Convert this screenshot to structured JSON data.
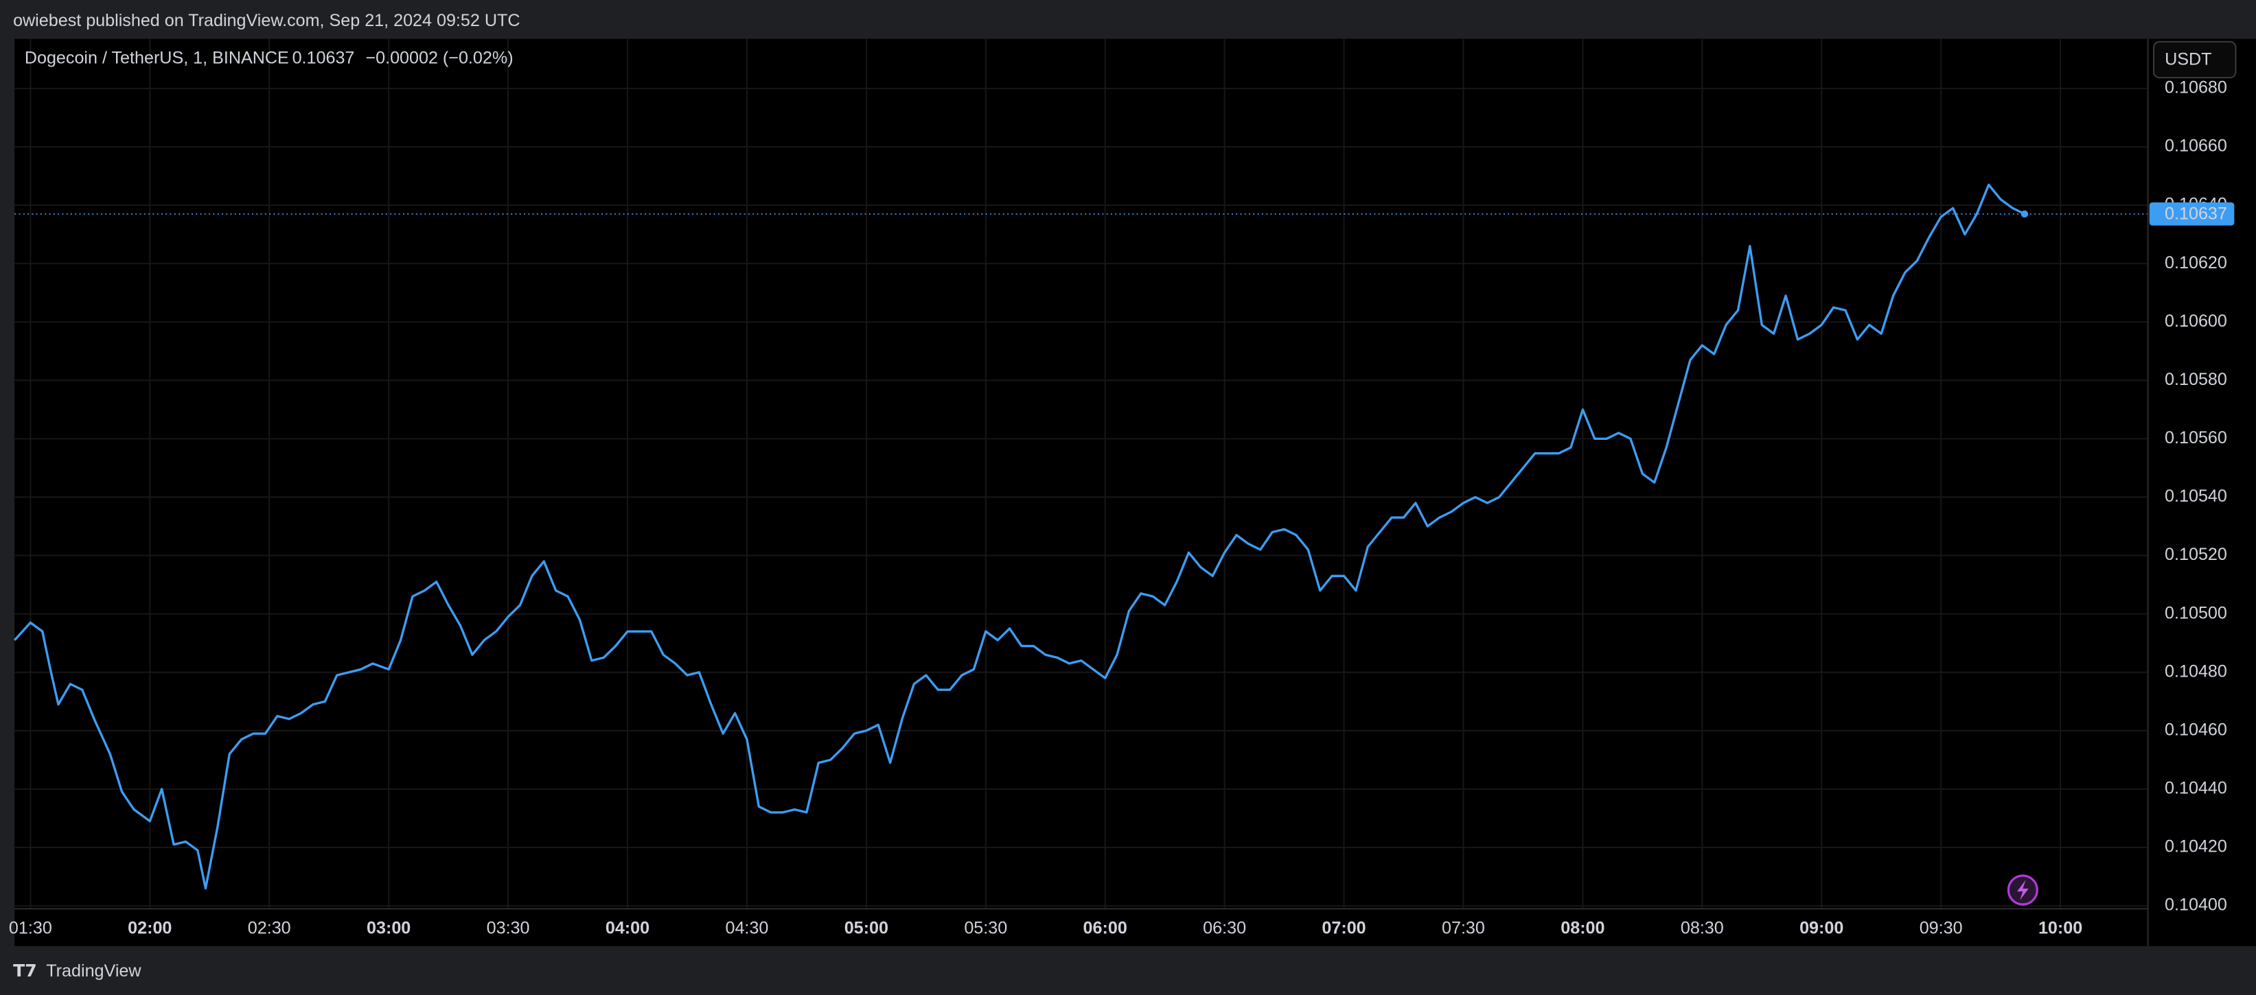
{
  "header": "owiebest published on TradingView.com, Sep 21, 2024 09:52 UTC",
  "footer": "TradingView",
  "chart_data": {
    "type": "line",
    "title": "Dogecoin / TetherUS, 1, BINANCE",
    "last_price": 0.10637,
    "change": "−0.00002 (−0.02%)",
    "currency": "USDT",
    "x": [
      "01:26",
      "01:30",
      "01:33",
      "01:35",
      "01:37",
      "01:40",
      "01:43",
      "01:46",
      "01:50",
      "01:53",
      "01:56",
      "02:00",
      "02:03",
      "02:06",
      "02:09",
      "02:12",
      "02:14",
      "02:17",
      "02:20",
      "02:23",
      "02:26",
      "02:29",
      "02:32",
      "02:35",
      "02:38",
      "02:41",
      "02:44",
      "02:47",
      "02:50",
      "02:53",
      "02:56",
      "03:00",
      "03:03",
      "03:06",
      "03:09",
      "03:12",
      "03:15",
      "03:18",
      "03:21",
      "03:24",
      "03:27",
      "03:30",
      "03:33",
      "03:36",
      "03:39",
      "03:42",
      "03:45",
      "03:48",
      "03:51",
      "03:54",
      "03:57",
      "04:00",
      "04:03",
      "04:06",
      "04:09",
      "04:12",
      "04:15",
      "04:18",
      "04:21",
      "04:24",
      "04:27",
      "04:30",
      "04:33",
      "04:36",
      "04:39",
      "04:42",
      "04:45",
      "04:48",
      "04:51",
      "04:54",
      "04:57",
      "05:00",
      "05:03",
      "05:06",
      "05:09",
      "05:12",
      "05:15",
      "05:18",
      "05:21",
      "05:24",
      "05:27",
      "05:30",
      "05:33",
      "05:36",
      "05:39",
      "05:42",
      "05:45",
      "05:48",
      "05:51",
      "05:54",
      "05:57",
      "06:00",
      "06:03",
      "06:06",
      "06:09",
      "06:12",
      "06:15",
      "06:18",
      "06:21",
      "06:24",
      "06:27",
      "06:30",
      "06:33",
      "06:36",
      "06:39",
      "06:42",
      "06:45",
      "06:48",
      "06:51",
      "06:54",
      "06:57",
      "07:00",
      "07:03",
      "07:06",
      "07:09",
      "07:12",
      "07:15",
      "07:18",
      "07:21",
      "07:24",
      "07:27",
      "07:30",
      "07:33",
      "07:36",
      "07:39",
      "07:42",
      "07:45",
      "07:48",
      "07:51",
      "07:54",
      "07:57",
      "08:00",
      "08:03",
      "08:06",
      "08:09",
      "08:12",
      "08:15",
      "08:18",
      "08:21",
      "08:24",
      "08:27",
      "08:30",
      "08:33",
      "08:36",
      "08:39",
      "08:42",
      "08:45",
      "08:48",
      "08:51",
      "08:54",
      "08:57",
      "09:00",
      "09:03",
      "09:06",
      "09:09",
      "09:12",
      "09:15",
      "09:18",
      "09:21",
      "09:24",
      "09:27",
      "09:30",
      "09:33",
      "09:36",
      "09:39",
      "09:42",
      "09:45",
      "09:48",
      "09:51"
    ],
    "series": [
      {
        "name": "DOGEUSDT",
        "color": "#3d9df3",
        "values": [
          0.10491,
          0.10497,
          0.10494,
          0.10481,
          0.10469,
          0.10476,
          0.10474,
          0.10464,
          0.10452,
          0.10439,
          0.10433,
          0.10429,
          0.1044,
          0.10421,
          0.10422,
          0.10419,
          0.10406,
          0.10427,
          0.10452,
          0.10457,
          0.10459,
          0.10459,
          0.10465,
          0.10464,
          0.10466,
          0.10469,
          0.1047,
          0.10479,
          0.1048,
          0.10481,
          0.10483,
          0.10481,
          0.10491,
          0.10506,
          0.10508,
          0.10511,
          0.10503,
          0.10496,
          0.10486,
          0.10491,
          0.10494,
          0.10499,
          0.10503,
          0.10513,
          0.10518,
          0.10508,
          0.10506,
          0.10498,
          0.10484,
          0.10485,
          0.10489,
          0.10494,
          0.10494,
          0.10494,
          0.10486,
          0.10483,
          0.10479,
          0.1048,
          0.10469,
          0.10459,
          0.10466,
          0.10457,
          0.10434,
          0.10432,
          0.10432,
          0.10433,
          0.10432,
          0.10449,
          0.1045,
          0.10454,
          0.10459,
          0.1046,
          0.10462,
          0.10449,
          0.10464,
          0.10476,
          0.10479,
          0.10474,
          0.10474,
          0.10479,
          0.10481,
          0.10494,
          0.10491,
          0.10495,
          0.10489,
          0.10489,
          0.10486,
          0.10485,
          0.10483,
          0.10484,
          0.10481,
          0.10478,
          0.10486,
          0.10501,
          0.10507,
          0.10506,
          0.10503,
          0.10511,
          0.10521,
          0.10516,
          0.10513,
          0.10521,
          0.10527,
          0.10524,
          0.10522,
          0.10528,
          0.10529,
          0.10527,
          0.10522,
          0.10508,
          0.10513,
          0.10513,
          0.10508,
          0.10523,
          0.10528,
          0.10533,
          0.10533,
          0.10538,
          0.1053,
          0.10533,
          0.10535,
          0.10538,
          0.1054,
          0.10538,
          0.1054,
          0.10545,
          0.1055,
          0.10555,
          0.10555,
          0.10555,
          0.10557,
          0.1057,
          0.1056,
          0.1056,
          0.10562,
          0.1056,
          0.10548,
          0.10545,
          0.10557,
          0.10572,
          0.10587,
          0.10592,
          0.10589,
          0.10599,
          0.10604,
          0.10626,
          0.10599,
          0.10596,
          0.10609,
          0.10594,
          0.10596,
          0.10599,
          0.10605,
          0.10604,
          0.10594,
          0.10599,
          0.10596,
          0.10609,
          0.10617,
          0.10621,
          0.10629,
          0.10636,
          0.10639,
          0.1063,
          0.10637,
          0.10647,
          0.10642,
          0.10639,
          0.10637
        ]
      }
    ],
    "xlim": [
      "01:26",
      "10:22"
    ],
    "xticks": [
      "01:30",
      "02:00",
      "02:30",
      "03:00",
      "03:30",
      "04:00",
      "04:30",
      "05:00",
      "05:30",
      "06:00",
      "06:30",
      "07:00",
      "07:30",
      "08:00",
      "08:30",
      "09:00",
      "09:30",
      "10:00"
    ],
    "ylim": [
      0.10399,
      0.10697
    ],
    "yticks": [
      {
        "value": 0.104,
        "label": "0.10400"
      },
      {
        "value": 0.1042,
        "label": "0.10420"
      },
      {
        "value": 0.1044,
        "label": "0.10440"
      },
      {
        "value": 0.1046,
        "label": "0.10460"
      },
      {
        "value": 0.1048,
        "label": "0.10480"
      },
      {
        "value": 0.105,
        "label": "0.10500"
      },
      {
        "value": 0.1052,
        "label": "0.10520"
      },
      {
        "value": 0.1054,
        "label": "0.10540"
      },
      {
        "value": 0.1056,
        "label": "0.10560"
      },
      {
        "value": 0.1058,
        "label": "0.10580"
      },
      {
        "value": 0.106,
        "label": "0.10600"
      },
      {
        "value": 0.1062,
        "label": "0.10620"
      },
      {
        "value": 0.1064,
        "label": "0.10640"
      },
      {
        "value": 0.1066,
        "label": "0.10660"
      },
      {
        "value": 0.1068,
        "label": "0.10680"
      }
    ],
    "grid": true
  }
}
